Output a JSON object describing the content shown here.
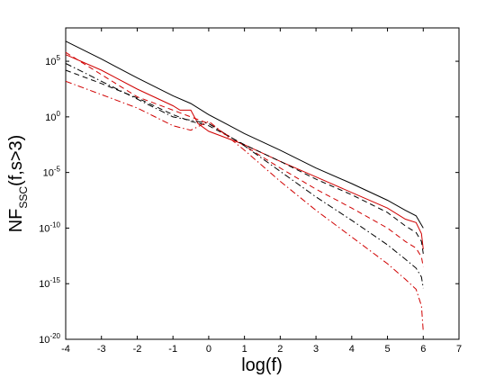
{
  "chart_data": {
    "type": "line",
    "xlabel": "log(f)",
    "ylabel": {
      "main": "NF",
      "sub": "SSC",
      "rest": "(f,s>3)"
    },
    "xlim": [
      -4,
      7
    ],
    "ylim_log10": [
      -20,
      8
    ],
    "y_scale": "log",
    "grid": false,
    "legend": "none",
    "x_ticks": [
      "-4",
      "-3",
      "-2",
      "-1",
      "0",
      "1",
      "2",
      "3",
      "4",
      "5",
      "6",
      "7"
    ],
    "y_ticks": [
      {
        "base": "10",
        "exp": "5",
        "log10": 5
      },
      {
        "base": "10",
        "exp": "0",
        "log10": 0
      },
      {
        "base": "10",
        "exp": "-5",
        "log10": -5
      },
      {
        "base": "10",
        "exp": "-10",
        "log10": -10
      },
      {
        "base": "10",
        "exp": "-15",
        "log10": -15
      },
      {
        "base": "10",
        "exp": "-20",
        "log10": -20
      }
    ],
    "series": [
      {
        "color": "#000000",
        "dash": "solid",
        "x": [
          -4,
          -3,
          -2,
          -1,
          -0.5,
          0,
          1,
          2,
          3,
          4,
          5,
          5.5,
          5.8,
          6
        ],
        "log10_y": [
          6.8,
          5.2,
          3.5,
          1.9,
          1.2,
          0.2,
          -1.5,
          -3.0,
          -4.6,
          -6.0,
          -7.5,
          -8.4,
          -8.9,
          -10.0
        ]
      },
      {
        "color": "#d00000",
        "dash": "solid",
        "x": [
          -4,
          -3,
          -2,
          -1,
          -0.8,
          -0.5,
          -0.3,
          0,
          1,
          2,
          3,
          4,
          5,
          5.5,
          5.8,
          5.95,
          6
        ],
        "log10_y": [
          5.6,
          4.2,
          2.5,
          1.0,
          0.6,
          0.6,
          -0.6,
          -1.3,
          -2.5,
          -4.0,
          -5.4,
          -6.8,
          -8.2,
          -9.2,
          -9.5,
          -10.5,
          -11.9
        ]
      },
      {
        "color": "#000000",
        "dash": "dash",
        "x": [
          -4,
          -3,
          -2,
          -1,
          -0.5,
          0,
          1,
          2,
          3,
          4,
          5,
          5.5,
          5.8,
          5.95,
          6
        ],
        "log10_y": [
          4.2,
          3.0,
          1.7,
          0.2,
          -0.4,
          -0.8,
          -2.5,
          -4.0,
          -5.6,
          -7.0,
          -8.6,
          -9.8,
          -10.4,
          -11.2,
          -12.3
        ]
      },
      {
        "color": "#d00000",
        "dash": "dash",
        "x": [
          -4,
          -3,
          -2,
          -1,
          -0.5,
          0,
          1,
          2,
          3,
          4,
          5,
          5.5,
          5.8,
          5.95,
          6
        ],
        "log10_y": [
          5.8,
          3.8,
          1.8,
          0.6,
          0.0,
          -0.6,
          -2.6,
          -4.6,
          -6.5,
          -8.2,
          -10.0,
          -11.2,
          -11.8,
          -12.6,
          -13.5
        ]
      },
      {
        "color": "#000000",
        "dash": "dashdot",
        "x": [
          -4,
          -3,
          -2,
          -1,
          -0.5,
          0,
          1,
          2,
          3,
          4,
          5,
          5.5,
          5.8,
          5.95,
          6
        ],
        "log10_y": [
          4.8,
          3.2,
          1.6,
          0.0,
          -0.3,
          -0.6,
          -2.6,
          -4.9,
          -7.2,
          -9.3,
          -11.5,
          -12.8,
          -13.6,
          -14.4,
          -15.4
        ]
      },
      {
        "color": "#d00000",
        "dash": "dashdot",
        "x": [
          -4,
          -3,
          -2,
          -1,
          -0.5,
          0,
          1,
          2,
          3,
          4,
          5,
          5.5,
          5.8,
          5.95,
          6
        ],
        "log10_y": [
          3.2,
          2.0,
          0.8,
          -0.8,
          -1.2,
          -0.4,
          -3.0,
          -5.8,
          -8.4,
          -10.8,
          -13.2,
          -14.6,
          -15.5,
          -17.0,
          -19.3
        ]
      }
    ]
  }
}
